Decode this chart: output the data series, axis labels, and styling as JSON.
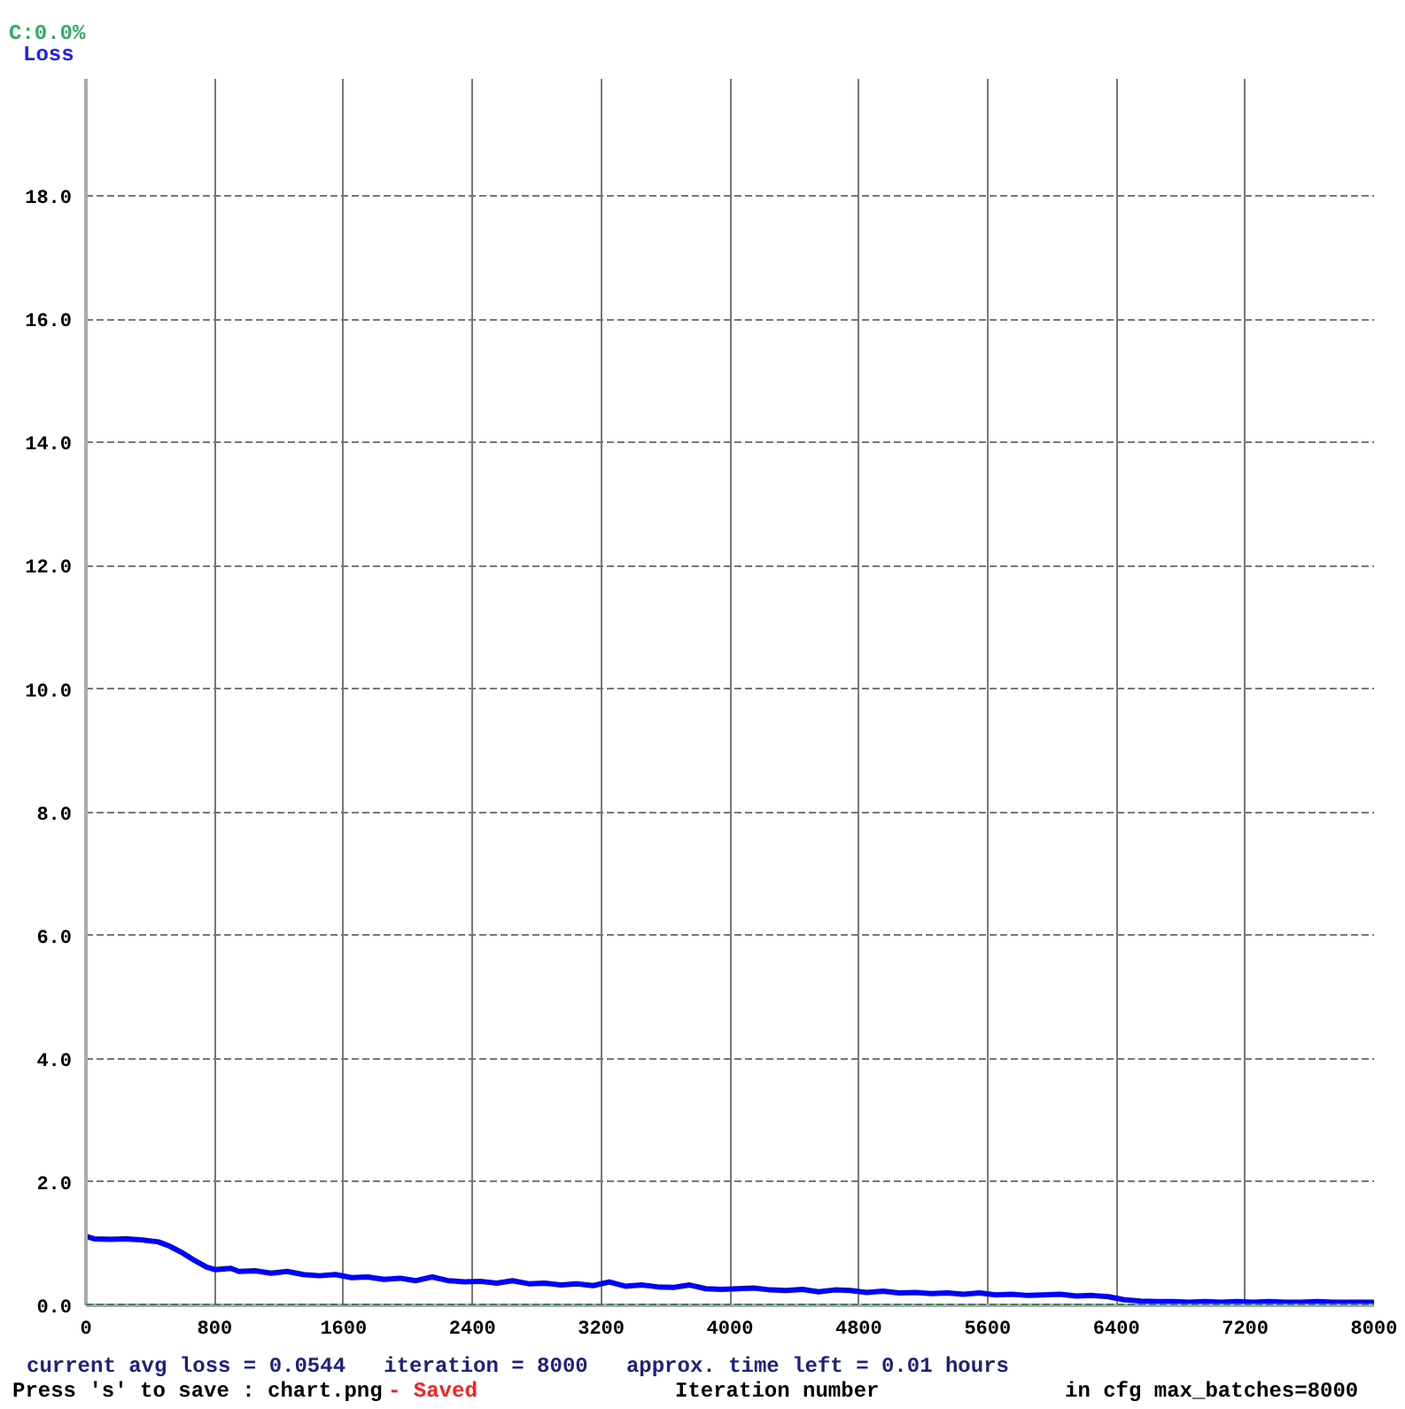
{
  "chart_data": {
    "type": "line",
    "ylabel": "Loss",
    "xlabel": "Iteration number",
    "annotations": [
      "C:0.0%",
      "current avg loss = 0.0544   iteration = 8000   approx. time left = 0.01 hours",
      "Press 's' to save : chart.png",
      "- Saved",
      "in cfg max_batches=8000"
    ],
    "xlim": [
      0,
      8000
    ],
    "ylim": [
      0,
      19.9
    ],
    "xticks": [
      0,
      800,
      1600,
      2400,
      3200,
      4000,
      4800,
      5600,
      6400,
      7200,
      8000
    ],
    "yticks": [
      {
        "value": 0,
        "label": "0.0"
      },
      {
        "value": 2,
        "label": "2.0"
      },
      {
        "value": 4,
        "label": "4.0"
      },
      {
        "value": 6,
        "label": "6.0"
      },
      {
        "value": 8,
        "label": "8.0"
      },
      {
        "value": 10,
        "label": "10.0"
      },
      {
        "value": 12,
        "label": "12.0"
      },
      {
        "value": 14,
        "label": "14.0"
      },
      {
        "value": 16,
        "label": "16.0"
      },
      {
        "value": 18,
        "label": "18.0"
      }
    ],
    "grid": true,
    "ref_lines": [
      {
        "axis": "y",
        "value": 0,
        "color": "#2e8b57",
        "line_style": "dashed"
      }
    ],
    "series": [
      {
        "color": "#0000ff",
        "x": [
          0,
          50,
          150,
          250,
          350,
          450,
          520,
          600,
          680,
          750,
          800,
          900,
          950,
          1050,
          1150,
          1250,
          1350,
          1450,
          1550,
          1650,
          1750,
          1850,
          1950,
          2050,
          2150,
          2250,
          2350,
          2450,
          2550,
          2650,
          2750,
          2850,
          2950,
          3050,
          3150,
          3250,
          3350,
          3450,
          3550,
          3650,
          3750,
          3850,
          3950,
          4050,
          4150,
          4250,
          4350,
          4450,
          4550,
          4650,
          4750,
          4850,
          4950,
          5050,
          5150,
          5250,
          5350,
          5450,
          5550,
          5650,
          5750,
          5850,
          5950,
          6050,
          6150,
          6250,
          6350,
          6450,
          6550,
          6650,
          6750,
          6850,
          6950,
          7050,
          7150,
          7250,
          7350,
          7450,
          7550,
          7650,
          7750,
          7850,
          8000
        ],
        "values": [
          1.12,
          1.08,
          1.07,
          1.08,
          1.06,
          1.03,
          0.96,
          0.85,
          0.72,
          0.62,
          0.58,
          0.6,
          0.55,
          0.56,
          0.52,
          0.55,
          0.5,
          0.48,
          0.5,
          0.45,
          0.46,
          0.42,
          0.44,
          0.4,
          0.46,
          0.4,
          0.38,
          0.39,
          0.36,
          0.4,
          0.35,
          0.36,
          0.33,
          0.35,
          0.32,
          0.38,
          0.31,
          0.33,
          0.3,
          0.29,
          0.33,
          0.27,
          0.26,
          0.27,
          0.28,
          0.25,
          0.24,
          0.26,
          0.22,
          0.25,
          0.24,
          0.21,
          0.23,
          0.2,
          0.21,
          0.19,
          0.2,
          0.18,
          0.2,
          0.17,
          0.18,
          0.16,
          0.17,
          0.18,
          0.15,
          0.16,
          0.14,
          0.09,
          0.07,
          0.06,
          0.06,
          0.05,
          0.06,
          0.05,
          0.06,
          0.05,
          0.06,
          0.05,
          0.05,
          0.06,
          0.05,
          0.05,
          0.05
        ]
      }
    ]
  }
}
